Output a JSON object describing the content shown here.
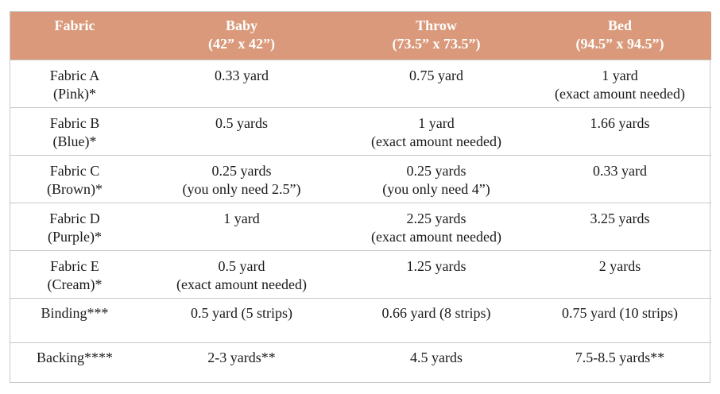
{
  "header": {
    "fabric": "Fabric",
    "baby_line1": "Baby",
    "baby_line2": "(42” x 42”)",
    "throw_line1": "Throw",
    "throw_line2": "(73.5” x 73.5”)",
    "bed_line1": "Bed",
    "bed_line2": "(94.5” x 94.5”)"
  },
  "rows": [
    {
      "fabric": [
        "Fabric A",
        "(Pink)*"
      ],
      "baby": [
        "0.33 yard"
      ],
      "throw": [
        "0.75 yard"
      ],
      "bed": [
        "1 yard",
        "(exact amount needed)"
      ]
    },
    {
      "fabric": [
        "Fabric B",
        "(Blue)*"
      ],
      "baby": [
        "0.5 yards"
      ],
      "throw": [
        "1 yard",
        "(exact amount needed)"
      ],
      "bed": [
        "1.66 yards"
      ]
    },
    {
      "fabric": [
        "Fabric C",
        "(Brown)*"
      ],
      "baby": [
        "0.25 yards",
        "(you only need 2.5”)"
      ],
      "throw": [
        "0.25 yards",
        "(you only need 4”)"
      ],
      "bed": [
        "0.33 yard"
      ]
    },
    {
      "fabric": [
        "Fabric D",
        "(Purple)*"
      ],
      "baby": [
        "1 yard"
      ],
      "throw": [
        "2.25 yards",
        "(exact amount needed)"
      ],
      "bed": [
        "3.25 yards"
      ]
    },
    {
      "fabric": [
        "Fabric E",
        "(Cream)*"
      ],
      "baby": [
        "0.5 yard",
        "(exact amount needed)"
      ],
      "throw": [
        "1.25 yards"
      ],
      "bed": [
        "2 yards"
      ]
    },
    {
      "fabric": [
        "Binding***"
      ],
      "baby": [
        "0.5 yard (5 strips)"
      ],
      "throw": [
        "0.66 yard (8 strips)"
      ],
      "bed": [
        "0.75 yard (10 strips)"
      ]
    },
    {
      "fabric": [
        "Backing****"
      ],
      "baby": [
        "2-3 yards**"
      ],
      "throw": [
        "4.5 yards"
      ],
      "bed": [
        "7.5-8.5 yards**"
      ]
    }
  ],
  "colors": {
    "header_bg": "#d9997a",
    "header_text": "#ffffff",
    "grid": "#c8c8c8"
  }
}
